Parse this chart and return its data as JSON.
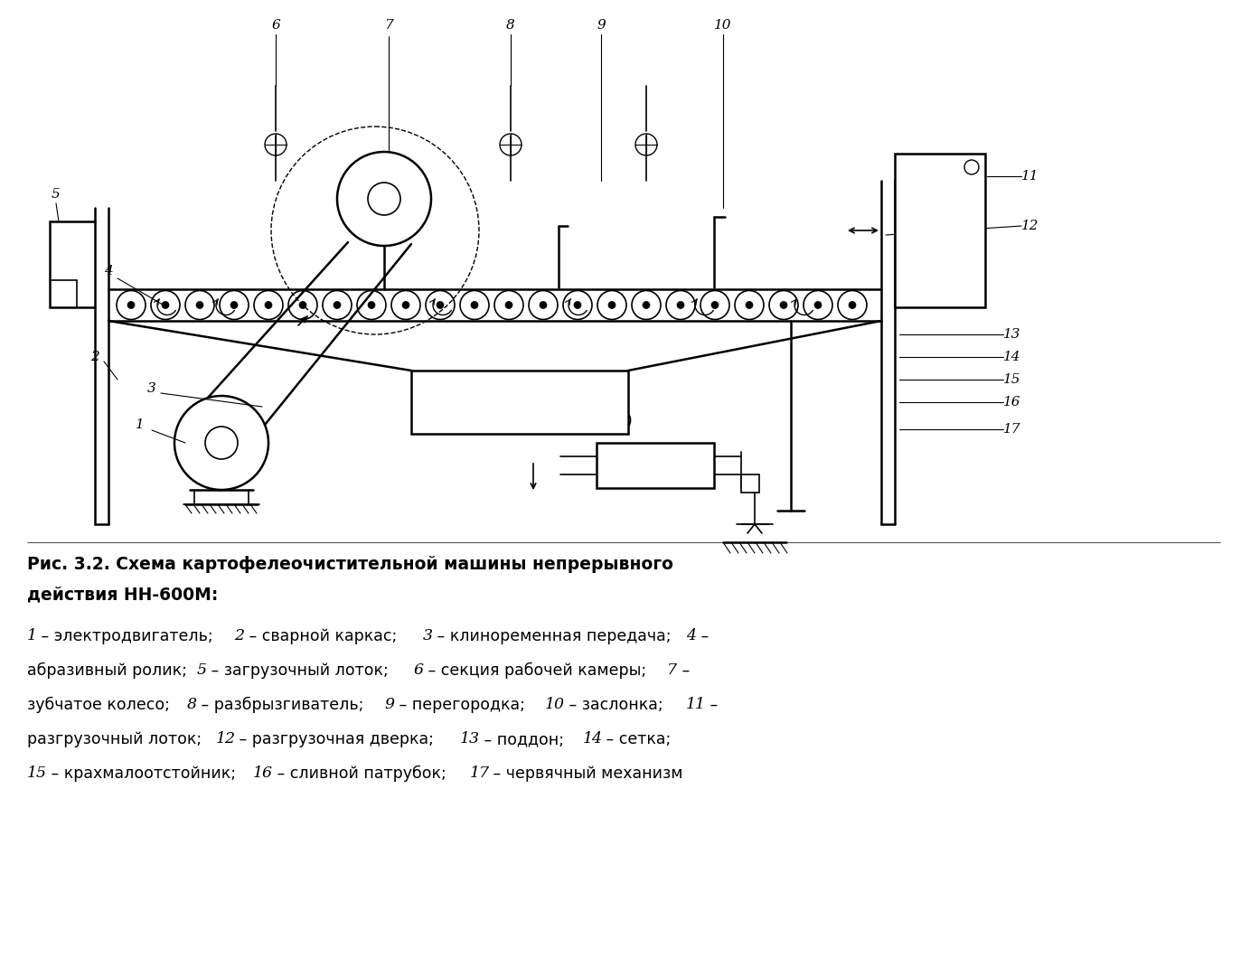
{
  "bg_color": "#ffffff",
  "fig_width": 13.83,
  "fig_height": 10.6,
  "dpi": 100,
  "caption_bold": "Рис. 3.2. Схема картофелеочистительной машины непрерывного\nдействия НН-600М:",
  "caption_italic_parts": [
    {
      "text": "1",
      "italic": true
    },
    {
      "text": " – электродвигатель; ",
      "italic": false
    },
    {
      "text": "2",
      "italic": true
    },
    {
      "text": " – сварной каркас; ",
      "italic": false
    },
    {
      "text": "3",
      "italic": true
    },
    {
      "text": " – клиноременная передача; ",
      "italic": false
    },
    {
      "text": "4",
      "italic": true
    },
    {
      "text": " –\nабразивный ролик; ",
      "italic": false
    },
    {
      "text": "5",
      "italic": true
    },
    {
      "text": " – загрузочный лоток; ",
      "italic": false
    },
    {
      "text": "6",
      "italic": true
    },
    {
      "text": " – секция рабочей камеры; ",
      "italic": false
    },
    {
      "text": "7",
      "italic": true
    },
    {
      "text": " –\nзубчатое колесо; ",
      "italic": false
    },
    {
      "text": "8",
      "italic": true
    },
    {
      "text": " – разбрызгиватель; ",
      "italic": false
    },
    {
      "text": "9",
      "italic": true
    },
    {
      "text": " – перегородка; ",
      "italic": false
    },
    {
      "text": "10",
      "italic": true
    },
    {
      "text": " – заслонка; ",
      "italic": false
    },
    {
      "text": "11",
      "italic": true
    },
    {
      "text": " –\nразгрузочный лоток; ",
      "italic": false
    },
    {
      "text": "12",
      "italic": true
    },
    {
      "text": " – разгрузочная дверка; ",
      "italic": false
    },
    {
      "text": "13",
      "italic": true
    },
    {
      "text": " – поддон; ",
      "italic": false
    },
    {
      "text": "14",
      "italic": true
    },
    {
      "text": " – сетка;\n",
      "italic": false
    },
    {
      "text": "15",
      "italic": true
    },
    {
      "text": " – крахмалоотстойник; ",
      "italic": false
    },
    {
      "text": "16",
      "italic": true
    },
    {
      "text": " – сливной патрубок; ",
      "italic": false
    },
    {
      "text": "17",
      "italic": true
    },
    {
      "text": " – червячный механизм",
      "italic": false
    }
  ]
}
